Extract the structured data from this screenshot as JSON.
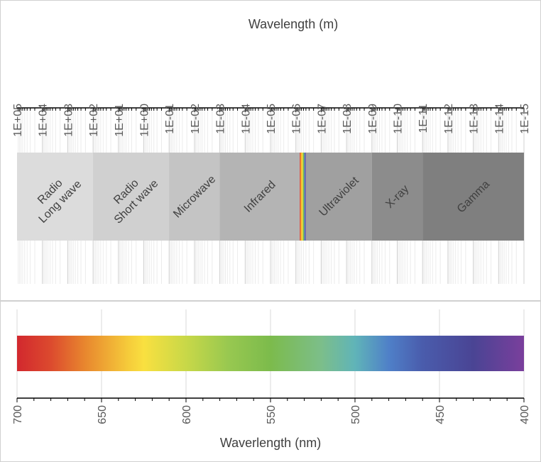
{
  "chart_data": [
    {
      "type": "spectrum-band",
      "title": "",
      "xlabel": "Wavelength (m)",
      "x_scale": "log",
      "x_ticks": [
        "1E+05",
        "1E+04",
        "1E+03",
        "1E+02",
        "1E+01",
        "1E+00",
        "1E-01",
        "1E-02",
        "1E-03",
        "1E-04",
        "1E-05",
        "1E-06",
        "1E-07",
        "1E-08",
        "1E-09",
        "1E-10",
        "1E-11",
        "1E-12",
        "1E-13",
        "1E-14",
        "1E-15"
      ],
      "x_range": [
        100000,
        1e-15
      ],
      "grid": true,
      "bands": [
        {
          "label_lines": [
            "Radio",
            "Long wave"
          ],
          "from": 100000,
          "to": 100,
          "color": "#dcdcdc"
        },
        {
          "label_lines": [
            "Radio",
            "Short wave"
          ],
          "from": 100,
          "to": 0.1,
          "color": "#d0d0d0"
        },
        {
          "label_lines": [
            "Microwave"
          ],
          "from": 0.1,
          "to": 0.001,
          "color": "#c4c4c4"
        },
        {
          "label_lines": [
            "Infrared"
          ],
          "from": 0.001,
          "to": 7e-07,
          "color": "#b4b4b4"
        },
        {
          "label_lines": [
            ""
          ],
          "from": 7e-07,
          "to": 4e-07,
          "color": "visible-spectrum"
        },
        {
          "label_lines": [
            "Ultraviolet"
          ],
          "from": 4e-07,
          "to": 1e-09,
          "color": "#a0a0a0"
        },
        {
          "label_lines": [
            "X-ray"
          ],
          "from": 1e-09,
          "to": 1e-11,
          "color": "#8c8c8c"
        },
        {
          "label_lines": [
            "Gamma"
          ],
          "from": 1e-11,
          "to": 1e-15,
          "color": "#7f7f7f"
        }
      ]
    },
    {
      "type": "spectrum-gradient",
      "title": "",
      "xlabel": "Waverlength (nm)",
      "xlim": [
        700,
        400
      ],
      "x_ticks": [
        700,
        650,
        600,
        550,
        500,
        450,
        400
      ],
      "grid": true,
      "gradient_stops": [
        {
          "nm": 700,
          "color": "#d2282e"
        },
        {
          "nm": 680,
          "color": "#dc4a2e"
        },
        {
          "nm": 660,
          "color": "#e8862e"
        },
        {
          "nm": 635,
          "color": "#f5c93a"
        },
        {
          "nm": 625,
          "color": "#f9e040"
        },
        {
          "nm": 600,
          "color": "#c8d848"
        },
        {
          "nm": 575,
          "color": "#98c850"
        },
        {
          "nm": 550,
          "color": "#7cbb4c"
        },
        {
          "nm": 520,
          "color": "#7cbe8a"
        },
        {
          "nm": 500,
          "color": "#60b4b8"
        },
        {
          "nm": 480,
          "color": "#4f80c8"
        },
        {
          "nm": 460,
          "color": "#4a5cac"
        },
        {
          "nm": 430,
          "color": "#4a4494"
        },
        {
          "nm": 400,
          "color": "#7a3f9c"
        }
      ]
    }
  ]
}
